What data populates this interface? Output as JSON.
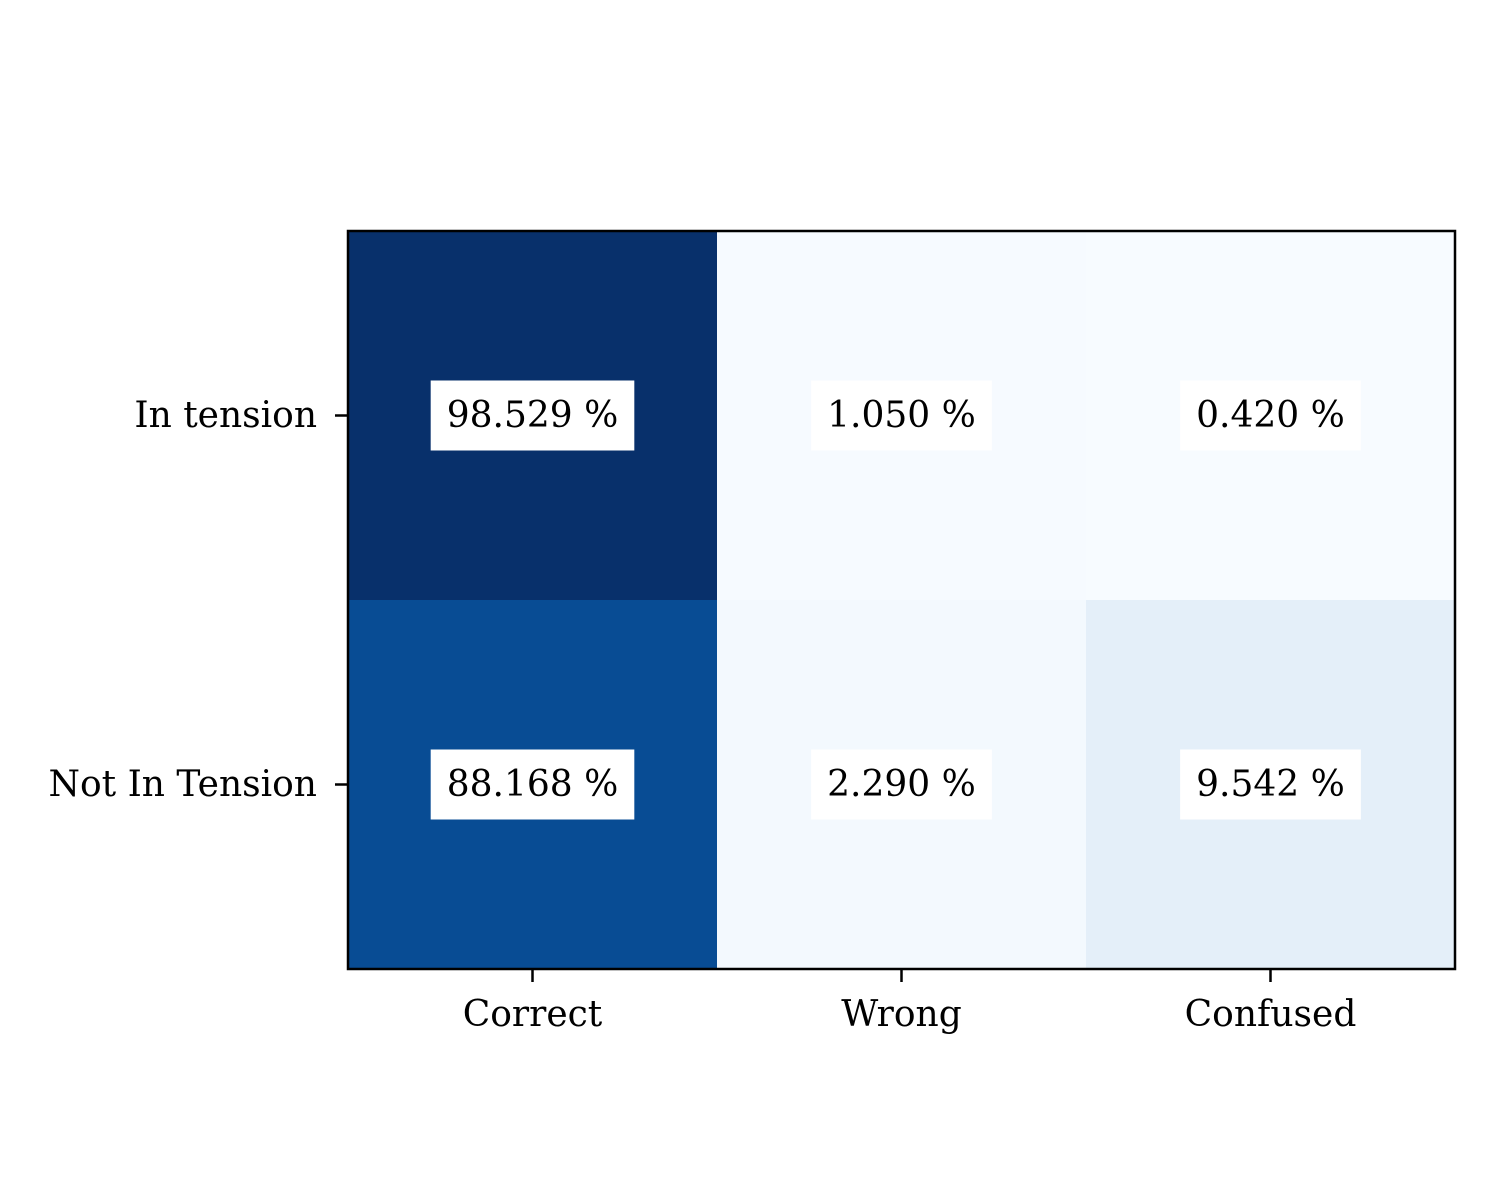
{
  "chart_data": {
    "type": "heatmap",
    "title": "",
    "xlabel": "",
    "ylabel": "",
    "x_categories": [
      "Correct",
      "Wrong",
      "Confused"
    ],
    "y_categories": [
      "In tension",
      "Not In Tension"
    ],
    "values": [
      [
        98.529,
        1.05,
        0.42
      ],
      [
        88.168,
        2.29,
        9.542
      ]
    ],
    "cell_labels": [
      [
        "98.529 %",
        "1.050 %",
        "0.420 %"
      ],
      [
        "88.168 %",
        "2.290 %",
        "9.542 %"
      ]
    ],
    "value_range": [
      0,
      100
    ],
    "colormap": "Blues",
    "colormap_low": "#f7fbff",
    "colormap_high": "#08306b",
    "label_box_color": "#ffffff",
    "grid": false,
    "colorbar": false
  }
}
